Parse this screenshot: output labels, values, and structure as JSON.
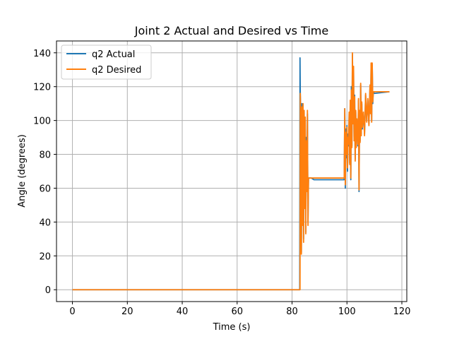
{
  "chart_data": {
    "type": "line",
    "title": "Joint 2 Actual and Desired vs Time",
    "xlabel": "Time (s)",
    "ylabel": "Angle (degrees)",
    "xlim": [
      -5.8,
      121.8
    ],
    "ylim": [
      -7,
      147
    ],
    "xticks": [
      0,
      20,
      40,
      60,
      80,
      100,
      120
    ],
    "yticks": [
      0,
      20,
      40,
      60,
      80,
      100,
      120,
      140
    ],
    "grid": true,
    "legend_position": "top-left",
    "series": [
      {
        "name": "q2 Actual",
        "color": "#1f77b4",
        "points": [
          [
            0,
            0
          ],
          [
            82.5,
            0
          ],
          [
            82.8,
            0
          ],
          [
            82.9,
            137
          ],
          [
            83.0,
            116
          ],
          [
            83.2,
            100
          ],
          [
            83.4,
            22
          ],
          [
            83.6,
            110
          ],
          [
            83.8,
            40
          ],
          [
            84.0,
            108
          ],
          [
            84.2,
            30
          ],
          [
            84.4,
            105
          ],
          [
            84.6,
            50
          ],
          [
            84.8,
            100
          ],
          [
            85.0,
            34
          ],
          [
            85.2,
            90
          ],
          [
            85.4,
            60
          ],
          [
            85.6,
            104
          ],
          [
            85.8,
            40
          ],
          [
            86.0,
            66
          ],
          [
            87.0,
            66
          ],
          [
            88.0,
            65
          ],
          [
            99.0,
            65
          ],
          [
            99.2,
            107
          ],
          [
            99.4,
            60
          ],
          [
            99.6,
            95
          ],
          [
            99.8,
            78
          ],
          [
            100.0,
            97
          ],
          [
            100.2,
            70
          ],
          [
            100.4,
            92
          ],
          [
            100.6,
            85
          ],
          [
            100.8,
            104
          ],
          [
            101.0,
            75
          ],
          [
            101.2,
            110
          ],
          [
            101.4,
            65
          ],
          [
            101.6,
            120
          ],
          [
            101.8,
            85
          ],
          [
            102.0,
            139
          ],
          [
            102.2,
            100
          ],
          [
            102.4,
            130
          ],
          [
            102.6,
            90
          ],
          [
            102.8,
            115
          ],
          [
            103.0,
            77
          ],
          [
            103.2,
            105
          ],
          [
            103.4,
            85
          ],
          [
            103.6,
            100
          ],
          [
            103.8,
            95
          ],
          [
            104.0,
            85
          ],
          [
            104.2,
            112
          ],
          [
            104.4,
            58
          ],
          [
            104.6,
            105
          ],
          [
            104.8,
            88
          ],
          [
            105.0,
            121
          ],
          [
            105.2,
            92
          ],
          [
            105.4,
            110
          ],
          [
            105.6,
            95
          ],
          [
            106.0,
            104
          ],
          [
            106.4,
            92
          ],
          [
            106.8,
            115
          ],
          [
            107.2,
            100
          ],
          [
            107.6,
            112
          ],
          [
            108.0,
            98
          ],
          [
            108.4,
            120
          ],
          [
            108.6,
            105
          ],
          [
            108.8,
            133
          ],
          [
            109.0,
            100
          ],
          [
            109.2,
            133
          ],
          [
            109.4,
            110
          ],
          [
            109.6,
            117
          ],
          [
            110.0,
            116
          ],
          [
            115.5,
            117
          ]
        ]
      },
      {
        "name": "q2 Desired",
        "color": "#ff7f0e",
        "points": [
          [
            0,
            0
          ],
          [
            82.5,
            0
          ],
          [
            82.9,
            0
          ],
          [
            83.0,
            116
          ],
          [
            83.2,
            98
          ],
          [
            83.4,
            21
          ],
          [
            83.6,
            108
          ],
          [
            83.8,
            38
          ],
          [
            84.0,
            110
          ],
          [
            84.2,
            28
          ],
          [
            84.4,
            106
          ],
          [
            84.6,
            48
          ],
          [
            84.8,
            102
          ],
          [
            85.0,
            33
          ],
          [
            85.2,
            88
          ],
          [
            85.4,
            58
          ],
          [
            85.6,
            106
          ],
          [
            85.8,
            38
          ],
          [
            86.0,
            66
          ],
          [
            99.0,
            66
          ],
          [
            99.2,
            107
          ],
          [
            99.4,
            62
          ],
          [
            99.6,
            93
          ],
          [
            99.8,
            80
          ],
          [
            100.0,
            96
          ],
          [
            100.2,
            72
          ],
          [
            100.4,
            90
          ],
          [
            100.6,
            86
          ],
          [
            100.8,
            105
          ],
          [
            101.0,
            74
          ],
          [
            101.2,
            112
          ],
          [
            101.4,
            66
          ],
          [
            101.6,
            118
          ],
          [
            101.8,
            84
          ],
          [
            102.0,
            140
          ],
          [
            102.2,
            98
          ],
          [
            102.4,
            132
          ],
          [
            102.6,
            88
          ],
          [
            102.8,
            114
          ],
          [
            103.0,
            76
          ],
          [
            103.2,
            106
          ],
          [
            103.4,
            84
          ],
          [
            103.6,
            101
          ],
          [
            103.8,
            94
          ],
          [
            104.0,
            86
          ],
          [
            104.2,
            113
          ],
          [
            104.4,
            59
          ],
          [
            104.6,
            106
          ],
          [
            104.8,
            87
          ],
          [
            105.0,
            122
          ],
          [
            105.2,
            91
          ],
          [
            105.4,
            111
          ],
          [
            105.6,
            96
          ],
          [
            106.0,
            105
          ],
          [
            106.4,
            91
          ],
          [
            106.8,
            116
          ],
          [
            107.2,
            99
          ],
          [
            107.6,
            113
          ],
          [
            108.0,
            97
          ],
          [
            108.4,
            121
          ],
          [
            108.6,
            104
          ],
          [
            108.8,
            134
          ],
          [
            109.0,
            99
          ],
          [
            109.2,
            134
          ],
          [
            109.4,
            111
          ],
          [
            109.6,
            117
          ],
          [
            110.0,
            117
          ],
          [
            115.5,
            117
          ]
        ]
      }
    ]
  }
}
